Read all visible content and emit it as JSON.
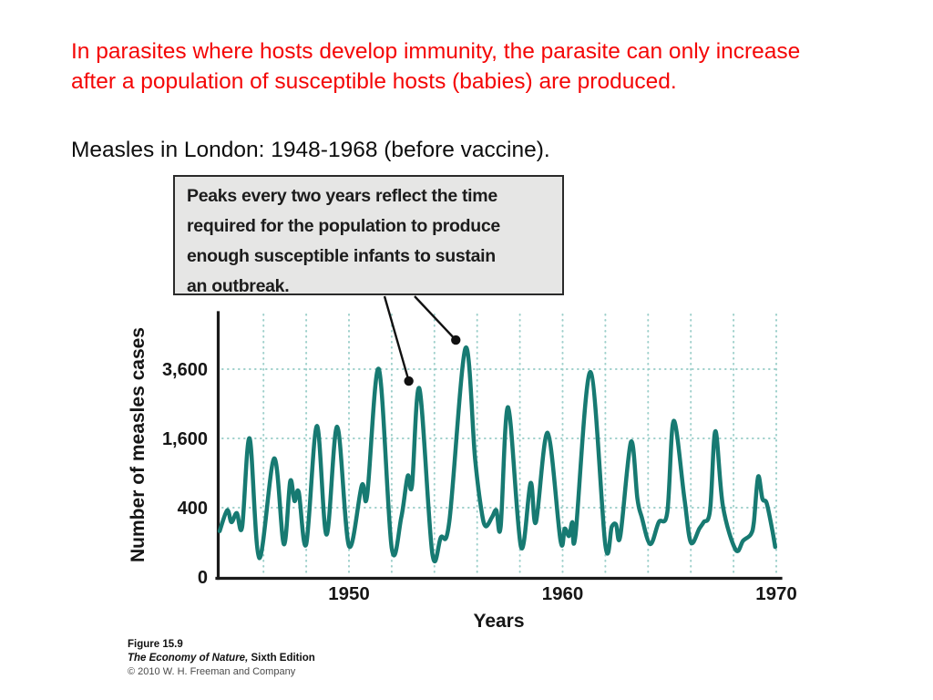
{
  "slide": {
    "heading_lines": [
      "In parasites where hosts develop immunity, the parasite can only increase",
      "after a population of susceptible hosts (babies) are produced."
    ],
    "subtitle": "Measles in London: 1948-1968 (before vaccine).",
    "colors": {
      "heading": "#f40606",
      "subtitle": "#0e0e0e"
    }
  },
  "figure": {
    "callout": {
      "lines": [
        "Peaks every two years reflect the time",
        "required for the population to produce",
        "enough susceptible infants to sustain",
        "an outbreak."
      ],
      "bg": "#e6e6e5",
      "border": "#2a2a2a"
    },
    "caption": {
      "figure_label": "Figure 15.9",
      "book_title": "The Economy of Nature,",
      "edition": " Sixth Edition",
      "copyright": "© 2010 W. H. Freeman and Company"
    }
  },
  "chart_data": {
    "type": "line",
    "title": "",
    "xlabel": "Years",
    "ylabel": "Number of measles cases",
    "y_scale": "sqrt",
    "x_range": [
      1943.9,
      1970.4
    ],
    "y_ticks": [
      {
        "label": "0",
        "value": 0
      },
      {
        "label": "400",
        "value": 400
      },
      {
        "label": "1,600",
        "value": 1600
      },
      {
        "label": "3,600",
        "value": 3600
      }
    ],
    "x_ticks": [
      {
        "label": "1950",
        "value": 1950
      },
      {
        "label": "1960",
        "value": 1960
      },
      {
        "label": "1970",
        "value": 1970
      }
    ],
    "grid": {
      "x_years": [
        1946,
        1948,
        1950,
        1952,
        1954,
        1956,
        1958,
        1960,
        1962,
        1964,
        1966,
        1968,
        1970
      ],
      "y_values": [
        400,
        1600,
        3600
      ],
      "style": "dotted"
    },
    "line_color": "#177a72",
    "grid_color": "#9ccfca",
    "axis_color": "#1a1a1a",
    "series": [
      [
        1943.95,
        175
      ],
      [
        1944.3,
        370
      ],
      [
        1944.5,
        250
      ],
      [
        1944.75,
        340
      ],
      [
        1945.0,
        210
      ],
      [
        1945.35,
        1600
      ],
      [
        1945.8,
        30
      ],
      [
        1946.5,
        1170
      ],
      [
        1946.95,
        90
      ],
      [
        1947.25,
        760
      ],
      [
        1947.45,
        480
      ],
      [
        1947.65,
        600
      ],
      [
        1948.0,
        90
      ],
      [
        1948.5,
        1900
      ],
      [
        1948.95,
        150
      ],
      [
        1949.45,
        1880
      ],
      [
        1950.0,
        80
      ],
      [
        1950.6,
        700
      ],
      [
        1950.85,
        550
      ],
      [
        1951.4,
        3600
      ],
      [
        1952.0,
        70
      ],
      [
        1952.45,
        300
      ],
      [
        1952.75,
        850
      ],
      [
        1952.95,
        700
      ],
      [
        1953.3,
        2950
      ],
      [
        1953.9,
        45
      ],
      [
        1954.3,
        130
      ],
      [
        1954.7,
        260
      ],
      [
        1955.45,
        4360
      ],
      [
        1955.9,
        1170
      ],
      [
        1956.2,
        370
      ],
      [
        1956.4,
        215
      ],
      [
        1956.7,
        300
      ],
      [
        1956.9,
        370
      ],
      [
        1957.1,
        210
      ],
      [
        1957.45,
        2400
      ],
      [
        1958.05,
        75
      ],
      [
        1958.5,
        735
      ],
      [
        1958.75,
        250
      ],
      [
        1959.3,
        1730
      ],
      [
        1959.9,
        110
      ],
      [
        1960.1,
        195
      ],
      [
        1960.3,
        140
      ],
      [
        1960.45,
        250
      ],
      [
        1960.6,
        145
      ],
      [
        1961.3,
        3500
      ],
      [
        1962.0,
        85
      ],
      [
        1962.3,
        210
      ],
      [
        1962.5,
        230
      ],
      [
        1962.7,
        140
      ],
      [
        1963.2,
        1520
      ],
      [
        1963.5,
        510
      ],
      [
        1963.7,
        300
      ],
      [
        1964.1,
        90
      ],
      [
        1964.5,
        250
      ],
      [
        1964.9,
        350
      ],
      [
        1965.2,
        2030
      ],
      [
        1965.7,
        510
      ],
      [
        1966.0,
        100
      ],
      [
        1966.4,
        195
      ],
      [
        1966.6,
        250
      ],
      [
        1966.9,
        370
      ],
      [
        1967.15,
        1770
      ],
      [
        1967.5,
        420
      ],
      [
        1968.1,
        62
      ],
      [
        1968.45,
        110
      ],
      [
        1968.8,
        150
      ],
      [
        1968.95,
        250
      ],
      [
        1969.15,
        840
      ],
      [
        1969.35,
        510
      ],
      [
        1969.55,
        455
      ],
      [
        1969.8,
        195
      ],
      [
        1969.95,
        75
      ]
    ],
    "callout_pointers": [
      {
        "target_year": 1952.8,
        "target_cases": 3200,
        "from_x": 422,
        "from_y": 325
      },
      {
        "target_year": 1955.0,
        "target_cases": 4680,
        "from_x": 455,
        "from_y": 325
      }
    ]
  }
}
